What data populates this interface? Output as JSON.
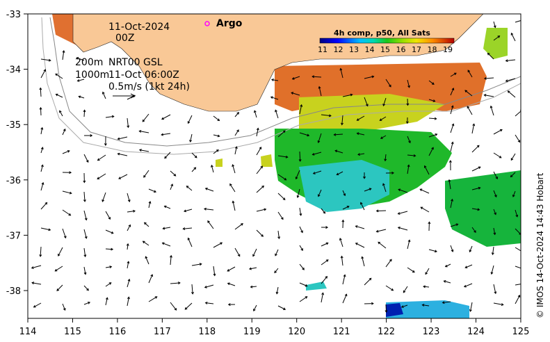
{
  "map": {
    "date_line": "11-Oct-2024",
    "time_line": "00Z",
    "depth_200": "200m",
    "depth_1000": "1000m",
    "product_label": "NRT00 GSL",
    "valid_time": "11-Oct 06:00Z",
    "velocity_scale_label": "0.5m/s (1kt 24h)",
    "argo_label": "Argo",
    "credit": "© IMOS 14-Oct-2024 14:43 Hobart"
  },
  "colorbar": {
    "title": "4h comp, p50, All Sats",
    "ticks": [
      "11",
      "12",
      "13",
      "14",
      "15",
      "16",
      "17",
      "18",
      "19"
    ]
  },
  "axes": {
    "x_ticks": [
      "114",
      "115",
      "116",
      "117",
      "118",
      "119",
      "120",
      "121",
      "122",
      "123",
      "124",
      "125"
    ],
    "y_ticks": [
      "-33",
      "-34",
      "-35",
      "-36",
      "-37",
      "-38"
    ]
  },
  "colors": {
    "land": "#f9c896",
    "argo_marker": "#ff00ff",
    "scale": [
      "#00007f",
      "#0000ff",
      "#007fff",
      "#00ffff",
      "#7fff7f",
      "#ffff00",
      "#ff7f00",
      "#ff0000",
      "#7f0000"
    ]
  }
}
